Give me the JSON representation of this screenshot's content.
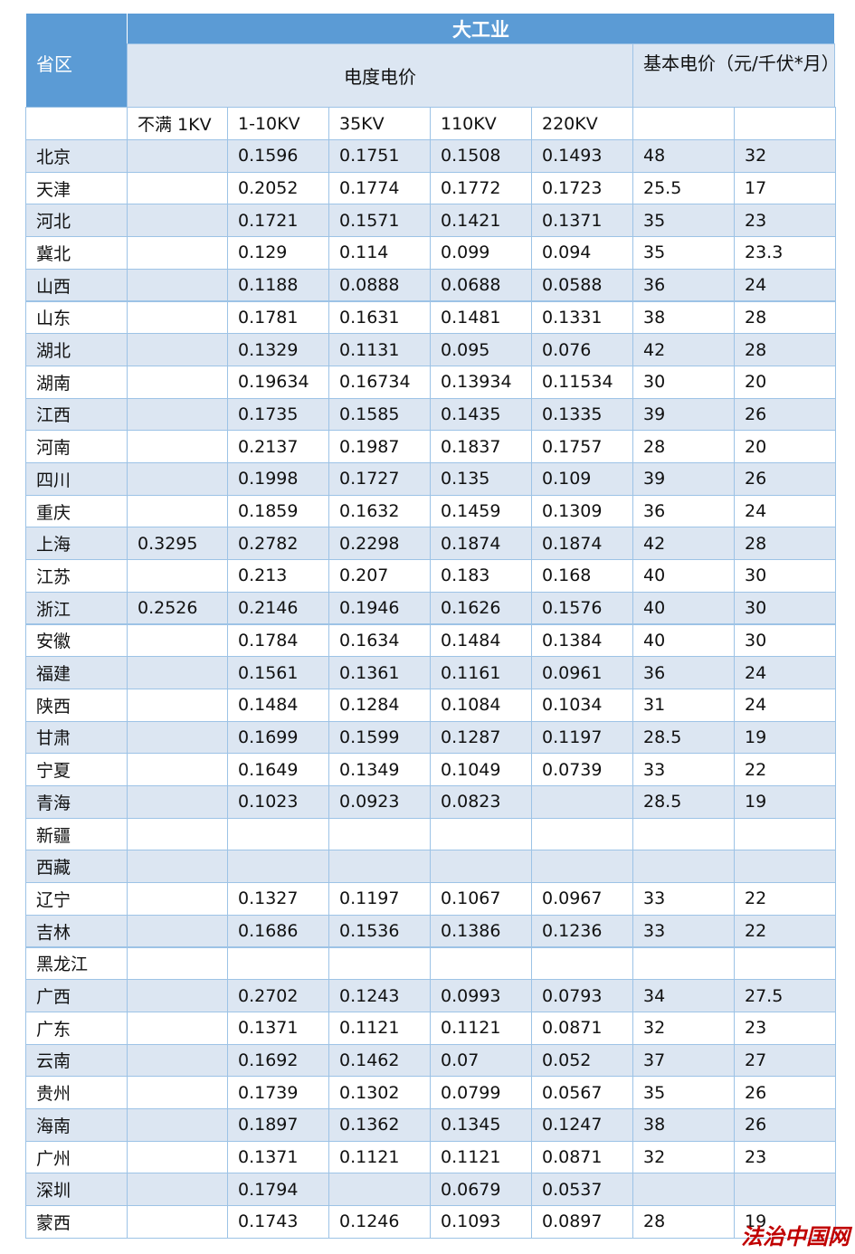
{
  "header": {
    "group_title": "大工业",
    "region_label": "省区",
    "energy_price_label": "电度电价",
    "basic_price_label": "基本电价（元/千伏*月）",
    "columns": [
      "不满 1KV",
      "1-10KV",
      "35KV",
      "110KV",
      "220KV"
    ]
  },
  "table": {
    "rows": [
      [
        "北京",
        null,
        0.1596,
        0.1751,
        0.1508,
        0.1493,
        48,
        32
      ],
      [
        "天津",
        null,
        0.2052,
        0.1774,
        0.1772,
        0.1723,
        25.5,
        17
      ],
      [
        "河北",
        null,
        0.1721,
        0.1571,
        0.1421,
        0.1371,
        35,
        23
      ],
      [
        "冀北",
        null,
        0.129,
        0.114,
        0.099,
        0.094,
        35,
        23.3
      ],
      [
        "山西",
        null,
        0.1188,
        0.0888,
        0.0688,
        0.0588,
        36,
        24
      ],
      [
        "山东",
        null,
        0.1781,
        0.1631,
        0.1481,
        0.1331,
        38,
        28
      ],
      [
        "湖北",
        null,
        0.1329,
        0.1131,
        0.095,
        0.076,
        42,
        28
      ],
      [
        "湖南",
        null,
        0.19634,
        0.16734,
        0.13934,
        0.11534,
        30,
        20
      ],
      [
        "江西",
        null,
        0.1735,
        0.1585,
        0.1435,
        0.1335,
        39,
        26
      ],
      [
        "河南",
        null,
        0.2137,
        0.1987,
        0.1837,
        0.1757,
        28,
        20
      ],
      [
        "四川",
        null,
        0.1998,
        0.1727,
        0.135,
        0.109,
        39,
        26
      ],
      [
        "重庆",
        null,
        0.1859,
        0.1632,
        0.1459,
        0.1309,
        36,
        24
      ],
      [
        "上海",
        0.3295,
        0.2782,
        0.2298,
        0.1874,
        0.1874,
        42,
        28
      ],
      [
        "江苏",
        null,
        0.213,
        0.207,
        0.183,
        0.168,
        40,
        30
      ],
      [
        "浙江",
        0.2526,
        0.2146,
        0.1946,
        0.1626,
        0.1576,
        40,
        30
      ],
      [
        "安徽",
        null,
        0.1784,
        0.1634,
        0.1484,
        0.1384,
        40,
        30
      ],
      [
        "福建",
        null,
        0.1561,
        0.1361,
        0.1161,
        0.0961,
        36,
        24
      ],
      [
        "陕西",
        null,
        0.1484,
        0.1284,
        0.1084,
        0.1034,
        31,
        24
      ],
      [
        "甘肃",
        null,
        0.1699,
        0.1599,
        0.1287,
        0.1197,
        28.5,
        19
      ],
      [
        "宁夏",
        null,
        0.1649,
        0.1349,
        0.1049,
        0.0739,
        33,
        22
      ],
      [
        "青海",
        null,
        0.1023,
        0.0923,
        0.0823,
        null,
        28.5,
        19
      ],
      [
        "新疆",
        null,
        null,
        null,
        null,
        null,
        null,
        null
      ],
      [
        "西藏",
        null,
        null,
        null,
        null,
        null,
        null,
        null
      ],
      [
        "辽宁",
        null,
        0.1327,
        0.1197,
        0.1067,
        0.0967,
        33,
        22
      ],
      [
        "吉林",
        null,
        0.1686,
        0.1536,
        0.1386,
        0.1236,
        33,
        22
      ],
      [
        "黑龙江",
        null,
        null,
        null,
        null,
        null,
        null,
        null
      ],
      [
        "广西",
        null,
        0.2702,
        0.1243,
        0.0993,
        0.0793,
        34,
        27.5
      ],
      [
        "广东",
        null,
        0.1371,
        0.1121,
        0.1121,
        0.0871,
        32,
        23
      ],
      [
        "云南",
        null,
        0.1692,
        0.1462,
        0.07,
        0.052,
        37,
        27
      ],
      [
        "贵州",
        null,
        0.1739,
        0.1302,
        0.0799,
        0.0567,
        35,
        26
      ],
      [
        "海南",
        null,
        0.1897,
        0.1362,
        0.1345,
        0.1247,
        38,
        26
      ],
      [
        "广州",
        null,
        0.1371,
        0.1121,
        0.1121,
        0.0871,
        32,
        23
      ],
      [
        "深圳",
        null,
        0.1794,
        null,
        0.0679,
        0.0537,
        null,
        null
      ],
      [
        "蒙西",
        null,
        0.1743,
        0.1246,
        0.1093,
        0.0897,
        28,
        19
      ]
    ]
  },
  "watermark": "法治中国网"
}
